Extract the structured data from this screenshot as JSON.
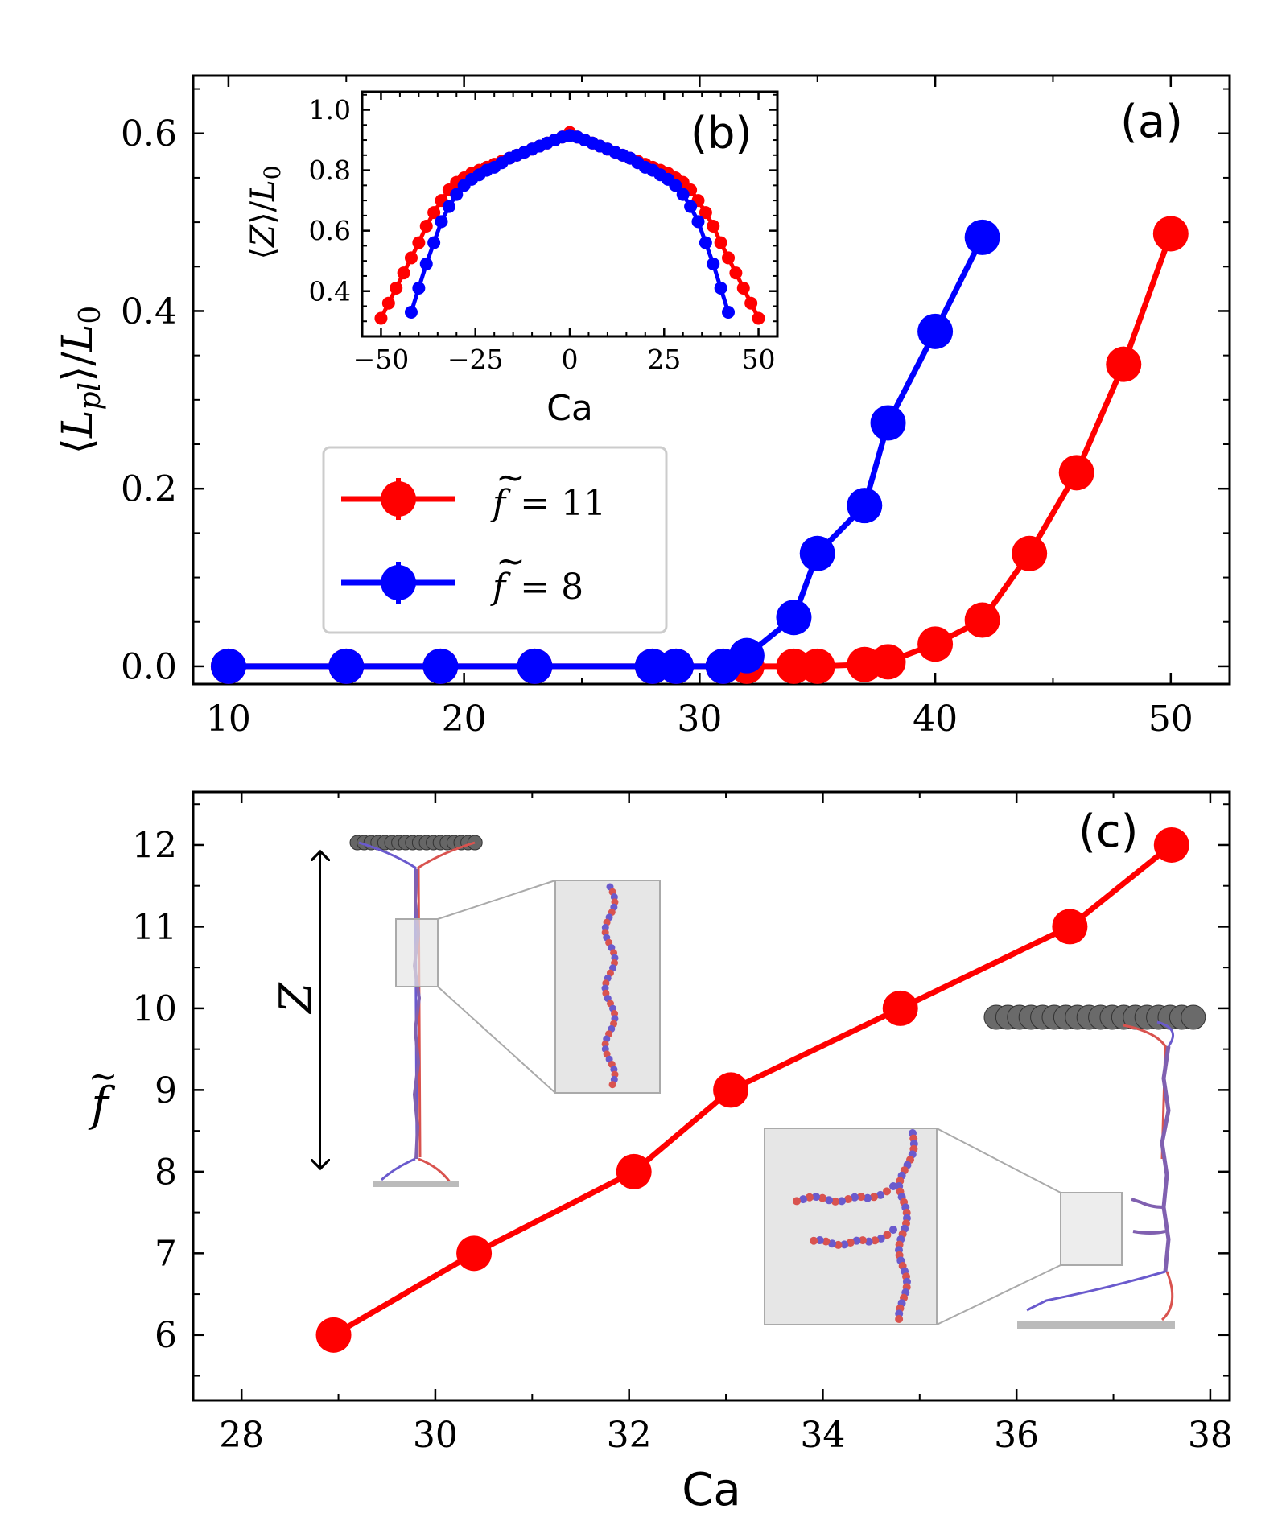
{
  "figure_labels": {
    "a": "(a)",
    "b": "(b)",
    "c": "(c)"
  },
  "colors": {
    "red": "#ff0000",
    "blue": "#0000ff",
    "axis": "#000000",
    "legend_border": "#cccccc",
    "zoom_fill": "#e6e6e6",
    "zoom_stroke": "#aaaaaa",
    "bead": "#555555"
  },
  "chart_data": [
    {
      "id": "a",
      "type": "line",
      "title": "",
      "xlabel": "",
      "ylabel": "⟨L_pl⟩/L_0",
      "ylabel_parts": {
        "open": "⟨",
        "sym": "L",
        "sub": "pl",
        "close": "⟩/",
        "sym2": "L",
        "sub2": "0"
      },
      "xlim": [
        8.5,
        52.5
      ],
      "ylim": [
        -0.02,
        0.665
      ],
      "xticks": [
        10,
        20,
        30,
        40,
        50
      ],
      "xtick_labels": [
        "10",
        "20",
        "30",
        "40",
        "50"
      ],
      "yticks": [
        0.0,
        0.2,
        0.4,
        0.6
      ],
      "ytick_labels": [
        "0.0",
        "0.2",
        "0.4",
        "0.6"
      ],
      "legend": {
        "placement": "center-left",
        "entries": [
          {
            "series": "f11",
            "label": "f̃ = 11",
            "sym": "f",
            "rest": "= 11"
          },
          {
            "series": "f8",
            "label": "f̃ = 8",
            "sym": "f",
            "rest": "= 8"
          }
        ]
      },
      "series": [
        {
          "key": "f11",
          "name": "f̃ = 11",
          "color": "#ff0000",
          "x": [
            10,
            15,
            19,
            23,
            28,
            29,
            31,
            32,
            34,
            35,
            37,
            38,
            40,
            42,
            44,
            46,
            48,
            50
          ],
          "y": [
            0,
            0,
            0,
            0,
            0,
            0,
            0,
            0,
            0.0,
            0.0,
            0.002,
            0.005,
            0.025,
            0.052,
            0.127,
            0.218,
            0.34,
            0.487
          ]
        },
        {
          "key": "f8",
          "name": "f̃ = 8",
          "color": "#0000ff",
          "x": [
            10,
            15,
            19,
            23,
            28,
            29,
            31,
            32,
            34,
            35,
            37,
            38,
            40,
            42
          ],
          "y": [
            0,
            0,
            0,
            0,
            0,
            0,
            0,
            0.012,
            0.055,
            0.127,
            0.181,
            0.274,
            0.377,
            0.483
          ]
        }
      ]
    },
    {
      "id": "b",
      "type": "line",
      "title": "",
      "xlabel": "Ca",
      "ylabel": "⟨Z⟩/L_0",
      "ylabel_parts": {
        "open": "⟨",
        "sym": "Z",
        "close": "⟩/",
        "sym2": "L",
        "sub2": "0"
      },
      "xlim": [
        -55,
        55
      ],
      "ylim": [
        0.25,
        1.06
      ],
      "xticks": [
        -50,
        -25,
        0,
        25,
        50
      ],
      "xtick_labels": [
        "−50",
        "−25",
        "0",
        "25",
        "50"
      ],
      "yticks": [
        0.4,
        0.6,
        0.8,
        1.0
      ],
      "ytick_labels": [
        "0.4",
        "0.6",
        "0.8",
        "1.0"
      ],
      "series": [
        {
          "key": "f11",
          "name": "f̃ = 11",
          "color": "#ff0000",
          "x": [
            -50,
            -48,
            -46,
            -44,
            -42,
            -40,
            -38,
            -36,
            -34,
            -32,
            -30,
            -28,
            -26,
            -24,
            -22,
            -20,
            -18,
            -16,
            -14,
            -12,
            -10,
            -8,
            -6,
            -4,
            -2,
            0,
            2,
            4,
            6,
            8,
            10,
            12,
            14,
            16,
            18,
            20,
            22,
            24,
            26,
            28,
            30,
            32,
            34,
            36,
            38,
            40,
            42,
            44,
            46,
            48,
            50
          ],
          "y": [
            0.31,
            0.36,
            0.41,
            0.46,
            0.51,
            0.56,
            0.615,
            0.66,
            0.7,
            0.735,
            0.76,
            0.775,
            0.79,
            0.8,
            0.81,
            0.82,
            0.83,
            0.84,
            0.85,
            0.86,
            0.87,
            0.88,
            0.89,
            0.9,
            0.91,
            0.925,
            0.91,
            0.9,
            0.89,
            0.88,
            0.87,
            0.86,
            0.85,
            0.84,
            0.83,
            0.82,
            0.81,
            0.8,
            0.79,
            0.775,
            0.76,
            0.735,
            0.7,
            0.66,
            0.615,
            0.56,
            0.51,
            0.46,
            0.41,
            0.36,
            0.31
          ]
        },
        {
          "key": "f8",
          "name": "f̃ = 8",
          "color": "#0000ff",
          "x": [
            -42,
            -40,
            -38,
            -36,
            -34,
            -32,
            -30,
            -28,
            -26,
            -24,
            -22,
            -20,
            -18,
            -16,
            -14,
            -12,
            -10,
            -8,
            -6,
            -4,
            -2,
            0,
            2,
            4,
            6,
            8,
            10,
            12,
            14,
            16,
            18,
            20,
            22,
            24,
            26,
            28,
            30,
            32,
            34,
            36,
            38,
            40,
            42
          ],
          "y": [
            0.33,
            0.41,
            0.49,
            0.56,
            0.63,
            0.68,
            0.72,
            0.75,
            0.77,
            0.785,
            0.8,
            0.81,
            0.825,
            0.84,
            0.85,
            0.86,
            0.87,
            0.88,
            0.89,
            0.9,
            0.91,
            0.915,
            0.91,
            0.9,
            0.89,
            0.88,
            0.87,
            0.86,
            0.85,
            0.84,
            0.825,
            0.81,
            0.8,
            0.785,
            0.77,
            0.75,
            0.72,
            0.68,
            0.63,
            0.56,
            0.49,
            0.41,
            0.33
          ]
        }
      ]
    },
    {
      "id": "c",
      "type": "line",
      "title": "",
      "xlabel": "Ca",
      "ylabel": "f̃",
      "ylabel_sym": "f",
      "xlim": [
        27.5,
        38.2
      ],
      "ylim": [
        5.2,
        12.65
      ],
      "xticks": [
        28,
        30,
        32,
        34,
        36,
        38
      ],
      "xtick_labels": [
        "28",
        "30",
        "32",
        "34",
        "36",
        "38"
      ],
      "yticks": [
        6,
        7,
        8,
        9,
        10,
        11,
        12
      ],
      "ytick_labels": [
        "6",
        "7",
        "8",
        "9",
        "10",
        "11",
        "12"
      ],
      "annotations": {
        "z_arrow_label": "Z"
      },
      "series": [
        {
          "key": "ftilde",
          "name": "f̃",
          "color": "#ff0000",
          "x": [
            28.95,
            30.4,
            32.05,
            33.05,
            34.8,
            36.55,
            37.6
          ],
          "y": [
            6,
            7,
            8,
            9,
            10,
            11,
            12
          ]
        }
      ]
    }
  ]
}
